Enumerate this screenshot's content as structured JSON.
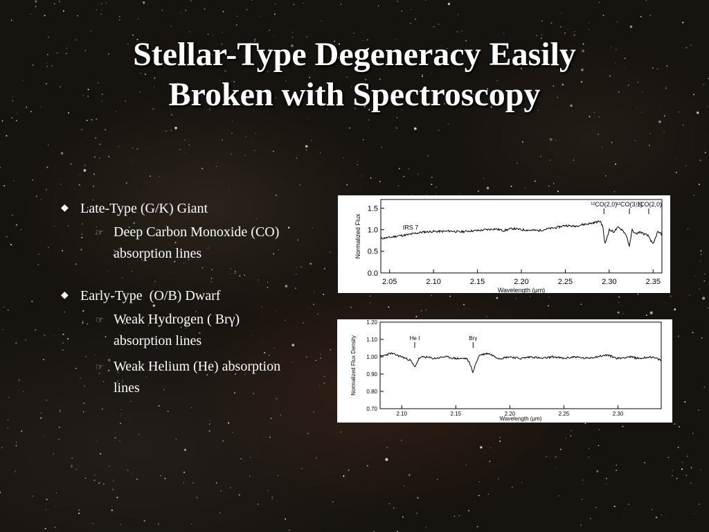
{
  "slide": {
    "title_line1": "Stellar-Type Degeneracy Easily",
    "title_line2": "Broken with Spectroscopy"
  },
  "bullets": [
    {
      "label": "Late-Type (G/K) Giant",
      "subitems": [
        "Deep Carbon Monoxide (CO) absorption lines"
      ]
    },
    {
      "label": "Early-Type  (O/B) Dwarf",
      "subitems": [
        "Weak Hydrogen ( Brγ) absorption lines",
        "Weak Helium (He) absorption lines"
      ]
    }
  ],
  "colors": {
    "background": "#17130f",
    "text": "#ffffff",
    "plot_bg": "#ffffff",
    "plot_line": "#000000"
  },
  "icons": {
    "bullet": "diamond-icon",
    "subbullet": "pointing-hand-icon"
  },
  "chart_data": [
    {
      "type": "line",
      "xlabel": "Wavelength (μm)",
      "ylabel": "Normalized Flux",
      "xlim": [
        2.04,
        2.36
      ],
      "ylim": [
        0.0,
        1.7
      ],
      "xticks": [
        "2.05",
        "2.10",
        "2.15",
        "2.20",
        "2.25",
        "2.30",
        "2.35"
      ],
      "yticks": [
        "0.0",
        "0.5",
        "1.0",
        "1.5"
      ],
      "annotations": [
        {
          "text": "IRS 7",
          "x": 2.065,
          "y": 1.0
        },
        {
          "text": "¹²CO(2,0)",
          "x": 2.294
        },
        {
          "text": "¹²CO(3,1)",
          "x": 2.323
        },
        {
          "text": "¹³CO(2,0)",
          "x": 2.345
        }
      ],
      "series": [
        {
          "x": [
            2.04,
            2.05,
            2.06,
            2.07,
            2.08,
            2.09,
            2.1,
            2.11,
            2.12,
            2.13,
            2.14,
            2.15,
            2.16,
            2.17,
            2.18,
            2.19,
            2.2,
            2.21,
            2.22,
            2.23,
            2.24,
            2.25,
            2.26,
            2.27,
            2.28,
            2.29,
            2.293,
            2.295,
            2.3,
            2.305,
            2.31,
            2.315,
            2.32,
            2.323,
            2.326,
            2.33,
            2.335,
            2.34,
            2.345,
            2.35,
            2.355,
            2.36
          ],
          "y": [
            0.8,
            0.82,
            0.86,
            0.88,
            0.92,
            0.95,
            0.96,
            0.96,
            0.97,
            0.95,
            0.97,
            0.98,
            1.0,
            1.02,
            0.98,
            1.03,
            1.0,
            0.99,
            0.98,
            1.02,
            1.05,
            1.1,
            1.08,
            1.12,
            1.15,
            1.2,
            1.05,
            0.65,
            1.0,
            0.95,
            1.05,
            1.0,
            0.85,
            0.6,
            1.0,
            0.9,
            0.95,
            0.9,
            0.85,
            0.65,
            0.95,
            0.9
          ]
        }
      ]
    },
    {
      "type": "line",
      "xlabel": "Wavelength (μm)",
      "ylabel": "Normalized Flux Density",
      "xlim": [
        2.08,
        2.34
      ],
      "ylim": [
        0.7,
        1.2
      ],
      "xticks": [
        "2.10",
        "2.15",
        "2.20",
        "2.25",
        "2.30"
      ],
      "yticks": [
        "0.70",
        "0.80",
        "0.90",
        "1.00",
        "1.10",
        "1.20"
      ],
      "annotations": [
        {
          "text": "He I",
          "x": 2.112
        },
        {
          "text": "Brγ",
          "x": 2.166
        }
      ],
      "series": [
        {
          "x": [
            2.08,
            2.09,
            2.1,
            2.108,
            2.112,
            2.116,
            2.12,
            2.13,
            2.14,
            2.15,
            2.16,
            2.163,
            2.166,
            2.169,
            2.172,
            2.18,
            2.19,
            2.2,
            2.21,
            2.22,
            2.23,
            2.24,
            2.25,
            2.26,
            2.27,
            2.28,
            2.29,
            2.3,
            2.31,
            2.32,
            2.33,
            2.34
          ],
          "y": [
            1.0,
            1.02,
            1.0,
            0.98,
            0.94,
            0.99,
            1.0,
            0.99,
            1.0,
            0.99,
            0.99,
            0.96,
            0.91,
            0.97,
            1.01,
            1.02,
            0.99,
            1.0,
            0.99,
            1.0,
            0.99,
            1.0,
            0.99,
            1.0,
            0.99,
            1.0,
            1.01,
            0.99,
            1.0,
            0.99,
            1.0,
            0.98
          ]
        }
      ]
    }
  ]
}
